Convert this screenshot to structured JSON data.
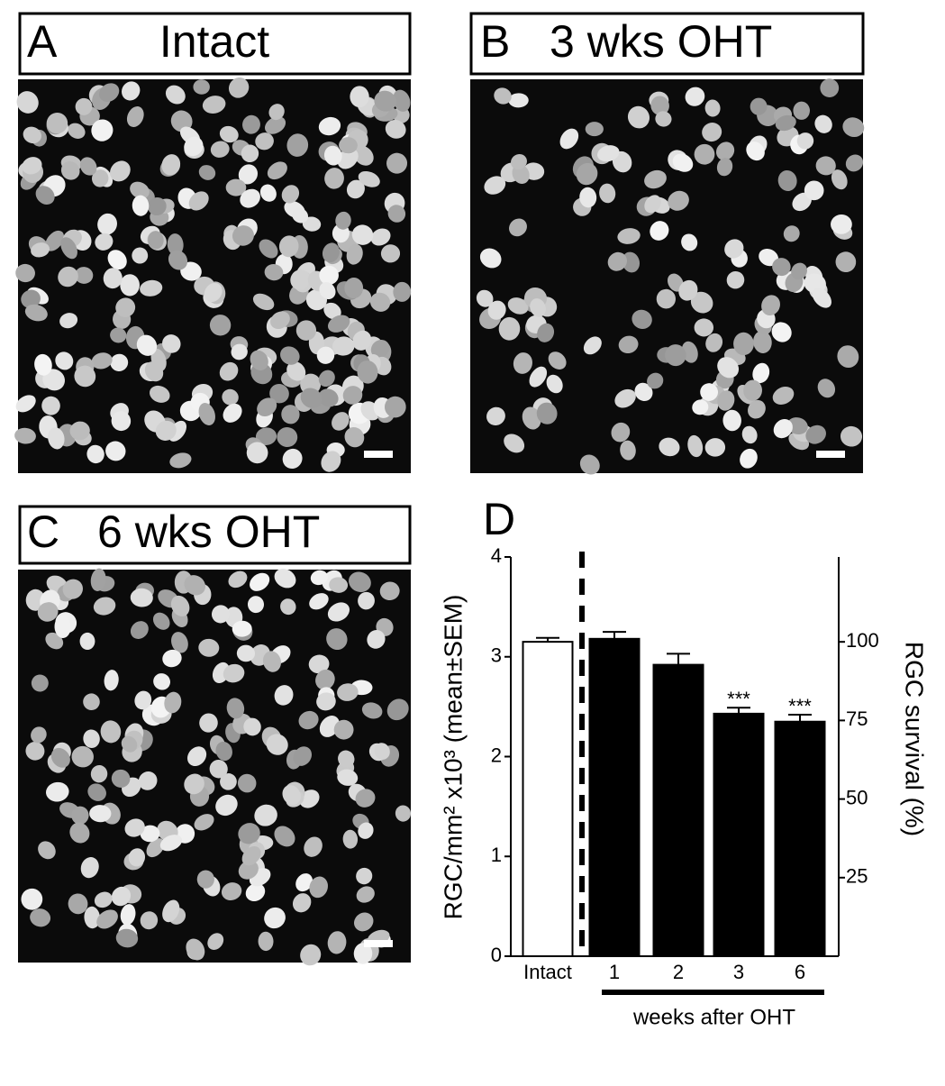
{
  "panels": [
    {
      "letter": "A",
      "title": "Intact"
    },
    {
      "letter": "B",
      "title": "3 wks OHT"
    },
    {
      "letter": "C",
      "title": "6 wks OHT"
    }
  ],
  "chart_data": {
    "type": "bar",
    "panel_label": "D",
    "categories": [
      "Intact",
      "1",
      "2",
      "3",
      "6"
    ],
    "values": [
      3.15,
      3.18,
      2.92,
      2.43,
      2.35
    ],
    "errors": [
      0.04,
      0.07,
      0.11,
      0.06,
      0.07
    ],
    "colors": [
      "#ffffff",
      "#000000",
      "#000000",
      "#000000",
      "#000000"
    ],
    "significance": [
      null,
      null,
      null,
      "***",
      "***"
    ],
    "ylabel": "RGC/mm² x10³ (mean±SEM)",
    "y2label": "RGC survival (%)",
    "xlabel": "weeks after OHT",
    "ylim": [
      0,
      4
    ],
    "yticks": [
      0,
      1,
      2,
      3,
      4
    ],
    "y2lim": [
      0,
      127
    ],
    "y2ticks": [
      25,
      50,
      75,
      100
    ]
  }
}
